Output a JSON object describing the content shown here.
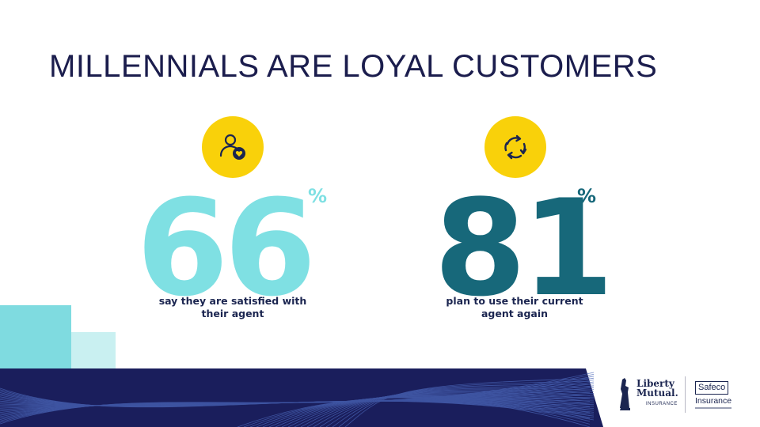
{
  "title": "MILLENNIALS ARE LOYAL CUSTOMERS",
  "stats": [
    {
      "icon": "person-heart-icon",
      "number": "66",
      "unit": "%",
      "caption_line1": "say they are satisfied with",
      "caption_line2": "their agent",
      "color": "#7fe0e3"
    },
    {
      "icon": "refresh-cycle-icon",
      "number": "81",
      "unit": "%",
      "caption_line1": "plan to use their current",
      "caption_line2": "agent again",
      "color": "#17687a"
    }
  ],
  "colors": {
    "title": "#1b1d4d",
    "icon_circle": "#f9d10a",
    "footer_navy": "#1a1e5c",
    "accent_light": "#7fdbe0",
    "accent_pale": "#c9f0f1"
  },
  "logos": {
    "liberty_line1": "Liberty",
    "liberty_line2": "Mutual.",
    "liberty_line3": "INSURANCE",
    "safeco_line1": "Safeco",
    "safeco_line2": "Insurance"
  }
}
